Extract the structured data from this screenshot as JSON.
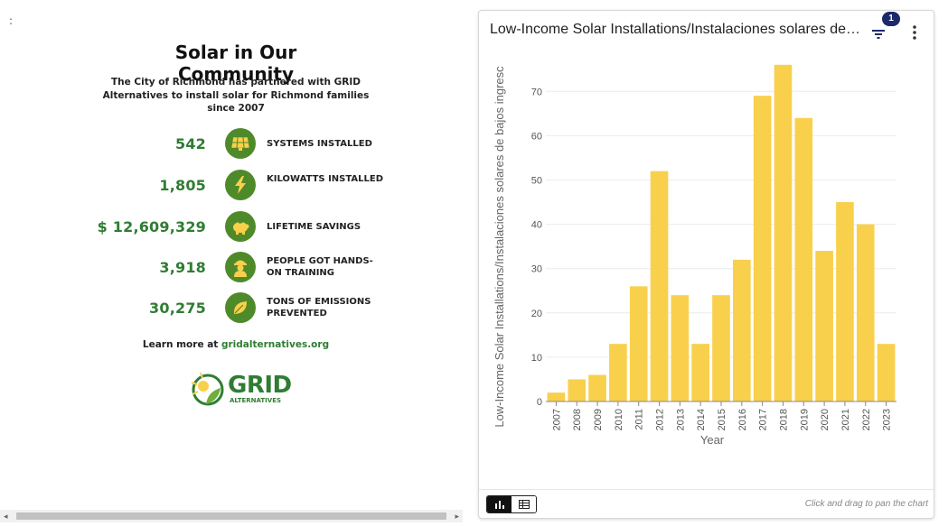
{
  "left_panel": {
    "menu_dots": ":",
    "title": "Solar in Our Community",
    "description": "The City of Richmond has partnered with GRID Alternatives to install solar for Richmond families since 2007",
    "stats": [
      {
        "value": "542",
        "label": "SYSTEMS INSTALLED",
        "icon": "solar-panel-icon"
      },
      {
        "value": "1,805",
        "label": "KILOWATTS INSTALLED",
        "icon": "lightning-bolt-icon"
      },
      {
        "value": "$ 12,609,329",
        "label": "LIFETIME SAVINGS",
        "icon": "piggy-bank-icon"
      },
      {
        "value": "3,918",
        "label": "PEOPLE GOT HANDS-ON TRAINING",
        "icon": "worker-icon"
      },
      {
        "value": "30,275",
        "label": "TONS OF EMISSIONS PREVENTED",
        "icon": "leaf-icon"
      }
    ],
    "learn_more_prefix": "Learn more at ",
    "learn_more_link": "gridalternatives.org",
    "logo_word": "GRID",
    "logo_sub": "ALTERNATIVES",
    "scroll_left": "◂",
    "scroll_right": "▸"
  },
  "card": {
    "title": "Low-Income Solar Installations/Instalaciones solares de bajos ingresos",
    "filter_count": "1",
    "footer_hint": "Click and drag to pan the chart"
  },
  "colors": {
    "bar": "#f9d04c",
    "accent_green": "#2f7d32",
    "icon_circle": "#4f8a2a",
    "badge": "#1b2a6b"
  },
  "chart_data": {
    "type": "bar",
    "categories": [
      "2007",
      "2008",
      "2009",
      "2010",
      "2011",
      "2012",
      "2013",
      "2014",
      "2015",
      "2016",
      "2017",
      "2018",
      "2019",
      "2020",
      "2021",
      "2022",
      "2023"
    ],
    "series": [
      {
        "values": [
          2,
          5,
          6,
          13,
          26,
          52,
          24,
          13,
          24,
          32,
          69,
          76,
          64,
          34,
          45,
          40,
          13
        ]
      }
    ],
    "xlabel": "Year",
    "ylabel": "Low-Income Solar Installations/Instalaciones solares de bajos ingresc",
    "ylim": [
      0,
      78
    ],
    "yticks": [
      0,
      10,
      20,
      30,
      40,
      50,
      60,
      70
    ],
    "grid": true
  }
}
